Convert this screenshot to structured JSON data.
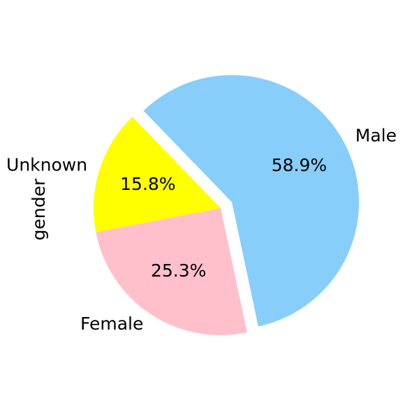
{
  "chart_data": {
    "type": "pie",
    "title": "",
    "ylabel": "gender",
    "categories": [
      "Male",
      "Unknown",
      "Female"
    ],
    "values": [
      58.9,
      15.8,
      25.3
    ],
    "labels": [
      "58.9%",
      "15.8%",
      "25.3%"
    ],
    "colors": [
      "#87cefa",
      "#ffff00",
      "#ffc0cb"
    ],
    "exploded": [
      "Male"
    ],
    "legend": "none",
    "grid": false
  }
}
